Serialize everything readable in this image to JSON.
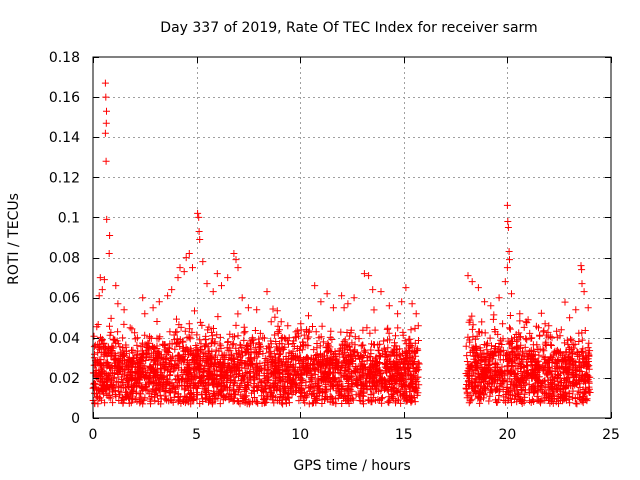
{
  "chart_data": {
    "type": "scatter",
    "title": "Day 337 of 2019, Rate Of TEC Index for receiver sarm",
    "xlabel": "GPS time / hours",
    "ylabel": "ROTI / TECUs",
    "xlim": [
      0,
      25
    ],
    "ylim": [
      0,
      0.18
    ],
    "x_ticks": [
      0,
      5,
      10,
      15,
      20,
      25
    ],
    "x_tick_labels": [
      "0",
      "5",
      "10",
      "15",
      "20",
      "25"
    ],
    "y_ticks": [
      0,
      0.02,
      0.04,
      0.06,
      0.08,
      0.1,
      0.12,
      0.14,
      0.16,
      0.18
    ],
    "y_tick_labels": [
      "0",
      "0.02",
      "0.04",
      "0.06",
      "0.08",
      "0.1",
      "0.12",
      "0.14",
      "0.16",
      "0.18"
    ],
    "grid": true,
    "marker": "+",
    "marker_color": "#ff0000",
    "series": [
      {
        "name": "ROTI",
        "points": [
          [
            0.6,
            0.167
          ],
          [
            0.62,
            0.16
          ],
          [
            0.65,
            0.153
          ],
          [
            0.64,
            0.147
          ],
          [
            0.6,
            0.142
          ],
          [
            0.63,
            0.128
          ],
          [
            0.66,
            0.099
          ],
          [
            0.8,
            0.091
          ],
          [
            0.78,
            0.082
          ],
          [
            0.35,
            0.07
          ],
          [
            0.55,
            0.069
          ],
          [
            0.45,
            0.064
          ],
          [
            0.3,
            0.061
          ],
          [
            1.1,
            0.066
          ],
          [
            1.2,
            0.057
          ],
          [
            1.5,
            0.054
          ],
          [
            2.4,
            0.06
          ],
          [
            2.5,
            0.052
          ],
          [
            2.9,
            0.055
          ],
          [
            3.2,
            0.058
          ],
          [
            3.6,
            0.061
          ],
          [
            3.8,
            0.064
          ],
          [
            4.1,
            0.07
          ],
          [
            4.2,
            0.075
          ],
          [
            4.4,
            0.073
          ],
          [
            4.5,
            0.08
          ],
          [
            4.65,
            0.082
          ],
          [
            4.8,
            0.075
          ],
          [
            5.05,
            0.102
          ],
          [
            5.1,
            0.1
          ],
          [
            5.12,
            0.093
          ],
          [
            5.15,
            0.089
          ],
          [
            5.3,
            0.078
          ],
          [
            5.5,
            0.067
          ],
          [
            5.8,
            0.063
          ],
          [
            6.0,
            0.072
          ],
          [
            6.2,
            0.066
          ],
          [
            6.5,
            0.07
          ],
          [
            6.8,
            0.082
          ],
          [
            6.9,
            0.079
          ],
          [
            7.0,
            0.075
          ],
          [
            7.2,
            0.06
          ],
          [
            7.5,
            0.055
          ],
          [
            7.9,
            0.054
          ],
          [
            8.4,
            0.063
          ],
          [
            8.6,
            0.048
          ],
          [
            9.0,
            0.044
          ],
          [
            9.4,
            0.046
          ],
          [
            9.9,
            0.042
          ],
          [
            10.4,
            0.051
          ],
          [
            10.7,
            0.066
          ],
          [
            11.0,
            0.058
          ],
          [
            11.3,
            0.062
          ],
          [
            11.6,
            0.055
          ],
          [
            12.0,
            0.061
          ],
          [
            12.3,
            0.057
          ],
          [
            12.6,
            0.06
          ],
          [
            13.1,
            0.072
          ],
          [
            13.3,
            0.071
          ],
          [
            13.5,
            0.064
          ],
          [
            13.9,
            0.063
          ],
          [
            14.3,
            0.056
          ],
          [
            14.7,
            0.052
          ],
          [
            14.9,
            0.058
          ],
          [
            15.1,
            0.065
          ],
          [
            15.4,
            0.057
          ],
          [
            15.6,
            0.052
          ],
          [
            15.7,
            0.046
          ],
          [
            18.1,
            0.071
          ],
          [
            18.3,
            0.068
          ],
          [
            18.6,
            0.065
          ],
          [
            18.9,
            0.058
          ],
          [
            19.2,
            0.056
          ],
          [
            19.6,
            0.06
          ],
          [
            19.9,
            0.068
          ],
          [
            20.0,
            0.106
          ],
          [
            20.02,
            0.098
          ],
          [
            20.05,
            0.095
          ],
          [
            20.08,
            0.083
          ],
          [
            20.1,
            0.079
          ],
          [
            20.0,
            0.075
          ],
          [
            20.2,
            0.062
          ],
          [
            20.6,
            0.052
          ],
          [
            21.0,
            0.049
          ],
          [
            21.5,
            0.045
          ],
          [
            22.0,
            0.046
          ],
          [
            22.6,
            0.044
          ],
          [
            23.0,
            0.05
          ],
          [
            23.3,
            0.054
          ],
          [
            23.55,
            0.076
          ],
          [
            23.58,
            0.074
          ],
          [
            23.6,
            0.067
          ],
          [
            23.7,
            0.063
          ],
          [
            23.9,
            0.055
          ]
        ],
        "band": {
          "segments": [
            [
              0.0,
              15.75
            ],
            [
              18.0,
              24.0
            ]
          ],
          "base_min": 0.007,
          "base_median": 0.022,
          "dense_top": 0.04,
          "points_per_hour": 165
        }
      }
    ]
  }
}
